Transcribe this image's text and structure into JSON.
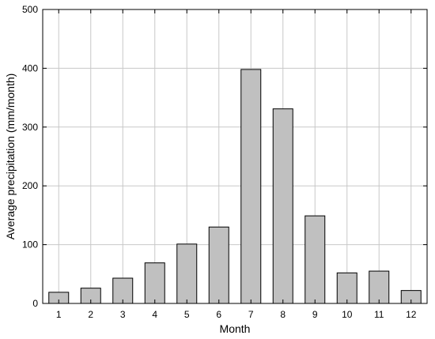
{
  "chart_data": {
    "type": "bar",
    "xlabel": "Month",
    "ylabel": "Average precipitation (mm/month)",
    "categories": [
      "1",
      "2",
      "3",
      "4",
      "5",
      "6",
      "7",
      "8",
      "9",
      "10",
      "11",
      "12"
    ],
    "values": [
      19,
      26,
      43,
      69,
      101,
      130,
      398,
      331,
      149,
      52,
      55,
      22
    ],
    "ylim": [
      0,
      500
    ],
    "yticks": [
      "0",
      "100",
      "200",
      "300",
      "400",
      "500"
    ],
    "grid": true,
    "colors": {
      "bar_fill": "#c0c0c0",
      "bar_stroke": "#000000",
      "grid": "#c8c8c8",
      "frame": "#000000"
    }
  }
}
